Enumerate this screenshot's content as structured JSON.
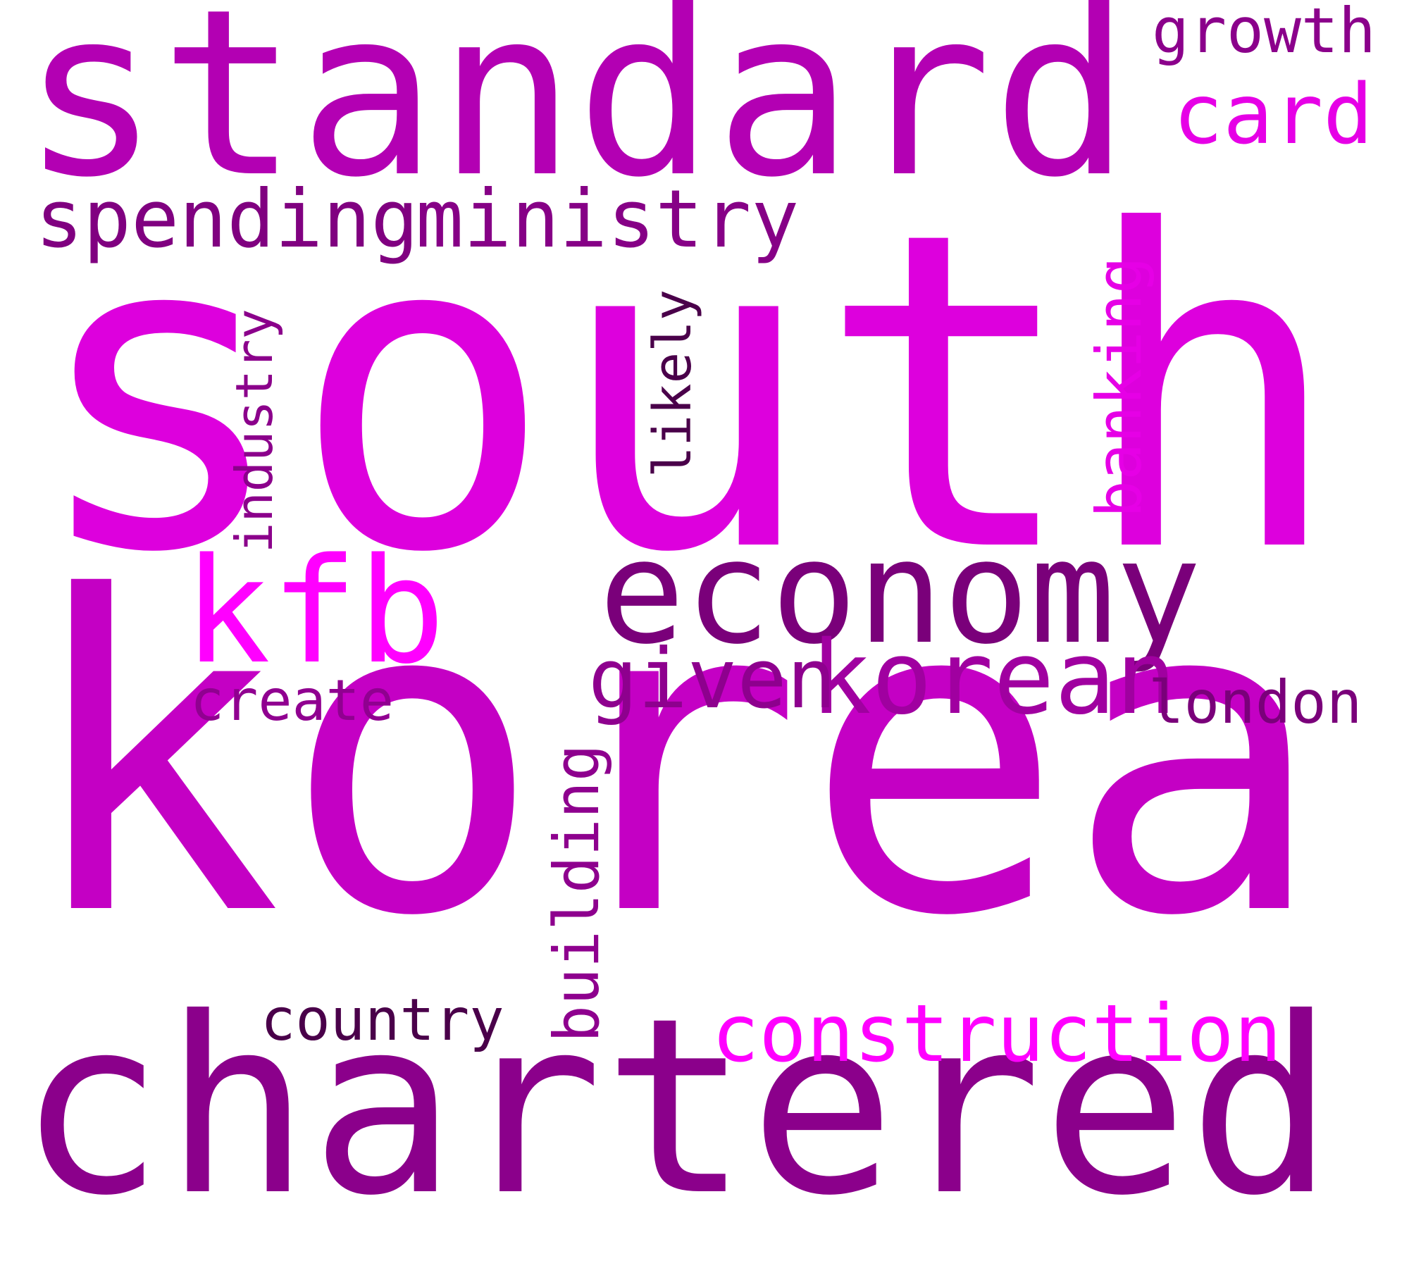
{
  "words": {
    "south": {
      "text": "south",
      "color": "#dd00dd"
    },
    "korea": {
      "text": "korea",
      "color": "#c400c4"
    },
    "chartered": {
      "text": "chartered",
      "color": "#8b008b"
    },
    "standard": {
      "text": "standard",
      "color": "#b300b3"
    },
    "economy": {
      "text": "economy",
      "color": "#7a007a"
    },
    "kfb": {
      "text": "kfb",
      "color": "#ff00ff"
    },
    "spending": {
      "text": "spending",
      "color": "#800080"
    },
    "ministry": {
      "text": "ministry",
      "color": "#860086"
    },
    "korean": {
      "text": "korean",
      "color": "#a000a0"
    },
    "given": {
      "text": "given",
      "color": "#8e008e"
    },
    "construction": {
      "text": "construction",
      "color": "#ff00ff"
    },
    "card": {
      "text": "card",
      "color": "#e600e6"
    },
    "growth": {
      "text": "growth",
      "color": "#8b008b"
    },
    "create": {
      "text": "create",
      "color": "#900090"
    },
    "london": {
      "text": "london",
      "color": "#7a007a"
    },
    "country": {
      "text": "country",
      "color": "#4a004a"
    },
    "building": {
      "text": "building",
      "color": "#8e008e"
    },
    "industry": {
      "text": "industry",
      "color": "#8b008b"
    },
    "likely": {
      "text": "likely",
      "color": "#4a004a"
    },
    "banking": {
      "text": "banking",
      "color": "#e600e6"
    }
  }
}
